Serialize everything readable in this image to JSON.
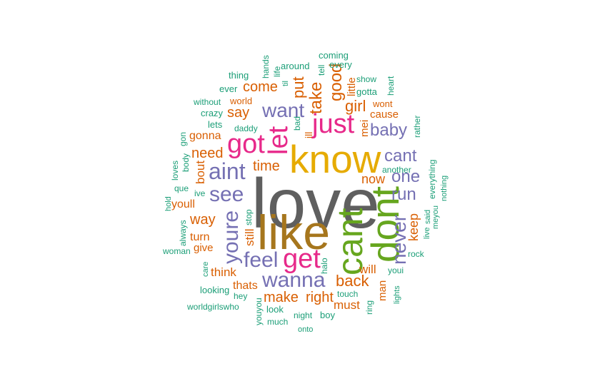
{
  "palette": {
    "grey": "#5f5f5f",
    "gold": "#e6ab02",
    "olive": "#a6761d",
    "green": "#66a61e",
    "pink": "#e7298a",
    "purple": "#7570b3",
    "orange": "#d95f02",
    "teal": "#1b9e77"
  },
  "words": [
    {
      "text": "love",
      "color": "grey"
    },
    {
      "text": "know",
      "color": "gold"
    },
    {
      "text": "like",
      "color": "olive"
    },
    {
      "text": "dont",
      "color": "green"
    },
    {
      "text": "cant",
      "color": "green"
    },
    {
      "text": "got",
      "color": "pink"
    },
    {
      "text": "let",
      "color": "pink"
    },
    {
      "text": "just",
      "color": "pink"
    },
    {
      "text": "get",
      "color": "pink"
    },
    {
      "text": "aint",
      "color": "purple"
    },
    {
      "text": "want",
      "color": "purple"
    },
    {
      "text": "see",
      "color": "purple"
    },
    {
      "text": "youre",
      "color": "purple"
    },
    {
      "text": "feel",
      "color": "purple"
    },
    {
      "text": "wanna",
      "color": "purple"
    },
    {
      "text": "never",
      "color": "purple"
    },
    {
      "text": "baby",
      "color": "purple"
    },
    {
      "text": "cant",
      "color": "purple"
    },
    {
      "text": "one",
      "color": "purple"
    },
    {
      "text": "run",
      "color": "purple"
    },
    {
      "text": "back",
      "color": "orange"
    },
    {
      "text": "make",
      "color": "orange"
    },
    {
      "text": "right",
      "color": "orange"
    },
    {
      "text": "must",
      "color": "orange"
    },
    {
      "text": "take",
      "color": "orange"
    },
    {
      "text": "good",
      "color": "orange"
    },
    {
      "text": "put",
      "color": "orange"
    },
    {
      "text": "come",
      "color": "orange"
    },
    {
      "text": "girl",
      "color": "orange"
    },
    {
      "text": "say",
      "color": "orange"
    },
    {
      "text": "need",
      "color": "orange"
    },
    {
      "text": "time",
      "color": "orange"
    },
    {
      "text": "way",
      "color": "orange"
    },
    {
      "text": "keep",
      "color": "orange"
    },
    {
      "text": "now",
      "color": "orange"
    },
    {
      "text": "will",
      "color": "orange"
    },
    {
      "text": "think",
      "color": "orange"
    },
    {
      "text": "thats",
      "color": "orange"
    },
    {
      "text": "gonna",
      "color": "orange"
    },
    {
      "text": "bout",
      "color": "orange"
    },
    {
      "text": "youll",
      "color": "orange"
    },
    {
      "text": "turn",
      "color": "orange"
    },
    {
      "text": "give",
      "color": "orange"
    },
    {
      "text": "still",
      "color": "orange"
    },
    {
      "text": "cause",
      "color": "orange"
    },
    {
      "text": "wont",
      "color": "orange"
    },
    {
      "text": "little",
      "color": "orange"
    },
    {
      "text": "mei",
      "color": "orange"
    },
    {
      "text": "ill",
      "color": "orange"
    },
    {
      "text": "man",
      "color": "orange"
    },
    {
      "text": "world",
      "color": "orange"
    },
    {
      "text": "gotta",
      "color": "teal"
    },
    {
      "text": "show",
      "color": "teal"
    },
    {
      "text": "heart",
      "color": "teal"
    },
    {
      "text": "coming",
      "color": "teal"
    },
    {
      "text": "every",
      "color": "teal"
    },
    {
      "text": "tell",
      "color": "teal"
    },
    {
      "text": "around",
      "color": "teal"
    },
    {
      "text": "til",
      "color": "teal"
    },
    {
      "text": "life",
      "color": "teal"
    },
    {
      "text": "hands",
      "color": "teal"
    },
    {
      "text": "thing",
      "color": "teal"
    },
    {
      "text": "ever",
      "color": "teal"
    },
    {
      "text": "without",
      "color": "teal"
    },
    {
      "text": "crazy",
      "color": "teal"
    },
    {
      "text": "lets",
      "color": "teal"
    },
    {
      "text": "daddy",
      "color": "teal"
    },
    {
      "text": "bad",
      "color": "teal"
    },
    {
      "text": "gon",
      "color": "teal"
    },
    {
      "text": "body",
      "color": "teal"
    },
    {
      "text": "loves",
      "color": "teal"
    },
    {
      "text": "que",
      "color": "teal"
    },
    {
      "text": "ive",
      "color": "teal"
    },
    {
      "text": "hold",
      "color": "teal"
    },
    {
      "text": "always",
      "color": "teal"
    },
    {
      "text": "woman",
      "color": "teal"
    },
    {
      "text": "care",
      "color": "teal"
    },
    {
      "text": "looking",
      "color": "teal"
    },
    {
      "text": "hey",
      "color": "teal"
    },
    {
      "text": "worldgirlswho",
      "color": "teal"
    },
    {
      "text": "youyou",
      "color": "teal"
    },
    {
      "text": "look",
      "color": "teal"
    },
    {
      "text": "much",
      "color": "teal"
    },
    {
      "text": "night",
      "color": "teal"
    },
    {
      "text": "boy",
      "color": "teal"
    },
    {
      "text": "onto",
      "color": "teal"
    },
    {
      "text": "touch",
      "color": "teal"
    },
    {
      "text": "ring",
      "color": "teal"
    },
    {
      "text": "halo",
      "color": "teal"
    },
    {
      "text": "stop",
      "color": "teal"
    },
    {
      "text": "youi",
      "color": "teal"
    },
    {
      "text": "lights",
      "color": "teal"
    },
    {
      "text": "rock",
      "color": "teal"
    },
    {
      "text": "live",
      "color": "teal"
    },
    {
      "text": "said",
      "color": "teal"
    },
    {
      "text": "meyou",
      "color": "teal"
    },
    {
      "text": "nothing",
      "color": "teal"
    },
    {
      "text": "everything",
      "color": "teal"
    },
    {
      "text": "another",
      "color": "teal"
    },
    {
      "text": "rather",
      "color": "teal"
    }
  ]
}
